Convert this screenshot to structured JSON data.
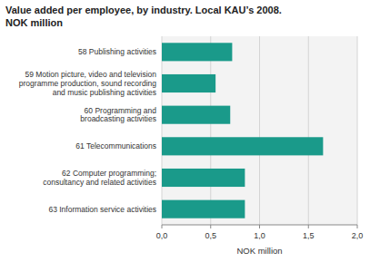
{
  "chart_data": {
    "type": "bar",
    "orientation": "horizontal",
    "title": "Value added per employee, by industry. Local KAU’s 2008.",
    "subtitle": "NOK million",
    "categories": [
      "58 Publishing activities",
      "59 Motion picture, video and television\nprogramme production, sound recording\nand music publishing activities",
      "60 Programming and\nbroadcasting activities",
      "61 Telecommunications",
      "62 Computer programming;\nconsultancy and related activities",
      "63 Information service activities"
    ],
    "values": [
      0.72,
      0.55,
      0.7,
      1.65,
      0.85,
      0.85
    ],
    "color": "#1a9a8a",
    "xlabel": "NOK million",
    "xlim": [
      0,
      2.0
    ],
    "xticks": [
      {
        "value": 0.0,
        "label": "0,0"
      },
      {
        "value": 0.5,
        "label": "0,5"
      },
      {
        "value": 1.0,
        "label": "1,0"
      },
      {
        "value": 1.5,
        "label": "1,5"
      },
      {
        "value": 2.0,
        "label": "2,0"
      }
    ],
    "grid": true
  }
}
